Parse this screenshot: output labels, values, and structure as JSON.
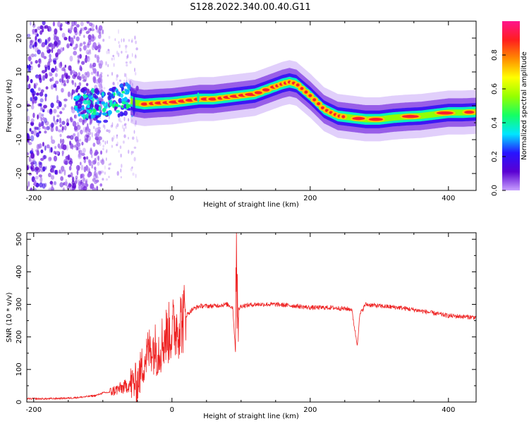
{
  "title": "S128.2022.340.00.40.G11",
  "chart_data": [
    {
      "type": "heatmap",
      "xlabel": "Height of straight line (km)",
      "ylabel": "Frequency (Hz)",
      "xlim": [
        -210,
        440
      ],
      "ylim": [
        -25,
        25
      ],
      "x_ticks": [
        -200,
        0,
        200,
        400
      ],
      "y_ticks": [
        -20,
        -10,
        0,
        10,
        20
      ],
      "colorbar": {
        "label": "Normalized spectral amplitude",
        "range": [
          0.0,
          1.0
        ],
        "ticks": [
          0.0,
          0.2,
          0.4,
          0.6,
          0.8
        ],
        "colormap": [
          "#c8a0ff",
          "#5a00d2",
          "#2814ff",
          "#00e6ff",
          "#14ff64",
          "#96ff00",
          "#ffff00",
          "#ff8c00",
          "#ff1e1e",
          "#ff148c"
        ]
      },
      "ridge": {
        "x": [
          -140,
          -120,
          -100,
          -80,
          -65,
          -55,
          -40,
          -20,
          0,
          20,
          40,
          60,
          80,
          100,
          120,
          140,
          160,
          170,
          180,
          200,
          220,
          240,
          260,
          280,
          300,
          320,
          340,
          360,
          380,
          400,
          420,
          440
        ],
        "y": [
          1.0,
          0.5,
          -0.5,
          1.5,
          2.0,
          1.0,
          0.5,
          0.8,
          1.0,
          1.5,
          2.0,
          2.0,
          2.5,
          3.0,
          3.5,
          5.0,
          6.5,
          7.0,
          6.5,
          3.0,
          -1.0,
          -3.0,
          -3.5,
          -4.0,
          -4.0,
          -3.5,
          -3.2,
          -3.0,
          -2.5,
          -2.0,
          -2.0,
          -1.8
        ]
      }
    },
    {
      "type": "line",
      "xlabel": "Height of straight line (km)",
      "ylabel": "SNR (10 * v/v)",
      "xlim": [
        -210,
        440
      ],
      "ylim": [
        0,
        520
      ],
      "x_ticks": [
        -200,
        0,
        200,
        400
      ],
      "y_ticks": [
        0,
        100,
        200,
        300,
        400,
        500
      ],
      "color": "#ee2222",
      "series": [
        {
          "x": [
            -210,
            -180,
            -150,
            -130,
            -110,
            -100,
            -90,
            -80,
            -70,
            -60,
            -50,
            -40,
            -30,
            -20,
            -10,
            0,
            10,
            20,
            30,
            40,
            60,
            80,
            88,
            92,
            95,
            100,
            120,
            150,
            180,
            200,
            230,
            260,
            268,
            272,
            280,
            300,
            330,
            360,
            400,
            440
          ],
          "y": [
            10,
            10,
            12,
            15,
            20,
            28,
            30,
            38,
            45,
            55,
            60,
            130,
            170,
            160,
            200,
            220,
            240,
            265,
            285,
            295,
            295,
            300,
            290,
            150,
            280,
            295,
            300,
            300,
            295,
            290,
            290,
            285,
            175,
            270,
            300,
            295,
            290,
            280,
            265,
            260
          ]
        }
      ]
    }
  ]
}
